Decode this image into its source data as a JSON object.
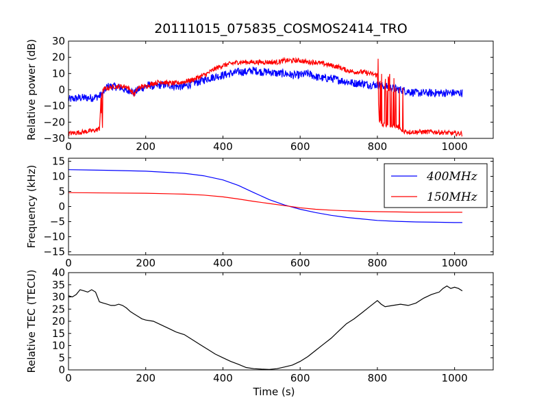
{
  "figure": {
    "title": "20111015_075835_COSMOS2414_TRO"
  },
  "chart_data": [
    {
      "type": "line",
      "ylabel": "Relative power (dB)",
      "xlim": [
        0,
        1100
      ],
      "ylim": [
        -30,
        30
      ],
      "xticks": [
        0,
        200,
        400,
        600,
        800,
        1000
      ],
      "yticks": [
        -30,
        -20,
        -10,
        0,
        10,
        20,
        30
      ],
      "grid": false,
      "series": [
        {
          "color": "#0000ff",
          "noise": 2.5,
          "x": [
            0,
            30,
            60,
            80,
            90,
            100,
            120,
            140,
            150,
            160,
            170,
            180,
            200,
            210,
            220,
            240,
            260,
            280,
            300,
            320,
            340,
            360,
            380,
            400,
            420,
            440,
            460,
            480,
            500,
            520,
            540,
            560,
            580,
            600,
            620,
            640,
            660,
            680,
            700,
            720,
            740,
            760,
            780,
            800,
            820,
            840,
            860,
            880,
            900,
            950,
            1000,
            1020
          ],
          "values": [
            -6,
            -5,
            -5,
            -4,
            -2,
            2,
            2,
            1,
            -1,
            0,
            -2,
            0,
            2,
            3,
            2,
            3,
            3,
            2,
            2,
            4,
            5,
            7,
            8,
            9,
            10,
            11,
            11,
            12,
            11,
            11,
            10,
            10,
            9,
            9,
            10,
            8,
            7,
            7,
            6,
            5,
            4,
            4,
            3,
            3,
            2,
            1,
            0,
            -1,
            -2,
            -2,
            -2,
            -2
          ]
        },
        {
          "color": "#ff0000",
          "noise": 1.5,
          "x": [
            0,
            40,
            70,
            80,
            85,
            90,
            100,
            120,
            140,
            150,
            160,
            170,
            180,
            190,
            200,
            210,
            220,
            240,
            260,
            280,
            300,
            320,
            340,
            360,
            380,
            400,
            420,
            440,
            460,
            480,
            500,
            520,
            540,
            560,
            580,
            600,
            620,
            640,
            660,
            680,
            700,
            720,
            740,
            760,
            780,
            800,
            805,
            820,
            840,
            850,
            860,
            880,
            900,
            950,
            1000,
            1020
          ],
          "values": [
            -27,
            -26,
            -25,
            -24,
            -2,
            0,
            1,
            2,
            2,
            2,
            0,
            -3,
            1,
            2,
            2,
            3,
            4,
            5,
            4,
            4,
            5,
            6,
            8,
            10,
            13,
            15,
            16,
            17,
            17,
            17,
            17,
            17,
            17,
            18,
            18,
            18,
            17,
            17,
            16,
            15,
            14,
            12,
            11,
            11,
            10,
            9,
            -20,
            -22,
            -22,
            -22,
            -25,
            -26,
            -26,
            -26,
            -27,
            -27
          ]
        }
      ]
    },
    {
      "type": "line",
      "ylabel": "Frequency (kHz)",
      "xlim": [
        0,
        1100
      ],
      "ylim": [
        -16,
        16
      ],
      "xticks": [
        0,
        200,
        400,
        600,
        800,
        1000
      ],
      "yticks": [
        -15,
        -10,
        -5,
        0,
        5,
        10,
        15
      ],
      "grid": false,
      "legend": "top-right",
      "series": [
        {
          "name": "400MHz",
          "color": "#0000ff",
          "x": [
            0,
            100,
            200,
            300,
            350,
            400,
            440,
            480,
            520,
            560,
            600,
            640,
            680,
            720,
            760,
            800,
            850,
            900,
            950,
            1000,
            1020
          ],
          "values": [
            12.2,
            12,
            11.7,
            11,
            10.2,
            8.8,
            7,
            4.6,
            2.3,
            0.5,
            -0.9,
            -2,
            -2.9,
            -3.6,
            -4.1,
            -4.6,
            -4.9,
            -5.1,
            -5.2,
            -5.3,
            -5.3
          ]
        },
        {
          "name": "150MHz",
          "color": "#ff0000",
          "x": [
            0,
            100,
            200,
            300,
            350,
            400,
            440,
            480,
            520,
            560,
            600,
            640,
            680,
            720,
            760,
            800,
            850,
            900,
            950,
            1000,
            1020
          ],
          "values": [
            4.6,
            4.5,
            4.4,
            4.1,
            3.8,
            3.2,
            2.5,
            1.7,
            1,
            0.3,
            -0.4,
            -0.9,
            -1.2,
            -1.4,
            -1.6,
            -1.7,
            -1.8,
            -1.9,
            -1.9,
            -1.9,
            -1.9
          ]
        }
      ]
    },
    {
      "type": "line",
      "ylabel": "Relative TEC (TECU)",
      "xlabel": "Time (s)",
      "xlim": [
        0,
        1100
      ],
      "ylim": [
        0,
        40
      ],
      "xticks": [
        0,
        200,
        400,
        600,
        800,
        1000
      ],
      "yticks": [
        0,
        5,
        10,
        15,
        20,
        25,
        30,
        35,
        40
      ],
      "grid": false,
      "series": [
        {
          "color": "#000000",
          "x": [
            0,
            10,
            20,
            30,
            40,
            50,
            60,
            70,
            80,
            90,
            100,
            110,
            120,
            130,
            140,
            150,
            160,
            170,
            180,
            190,
            200,
            220,
            240,
            260,
            280,
            300,
            320,
            340,
            360,
            380,
            400,
            420,
            440,
            460,
            480,
            500,
            520,
            540,
            560,
            580,
            600,
            620,
            640,
            660,
            680,
            700,
            720,
            740,
            760,
            780,
            800,
            810,
            820,
            840,
            860,
            880,
            900,
            920,
            940,
            960,
            970,
            980,
            990,
            1000,
            1010,
            1020
          ],
          "values": [
            30.5,
            30,
            31,
            33,
            32.5,
            32,
            33,
            32,
            28,
            27.5,
            27,
            26.5,
            26.5,
            27,
            26.5,
            25.5,
            24,
            23,
            22,
            21,
            20.5,
            20,
            18.5,
            17,
            15.5,
            14.5,
            12.5,
            10.5,
            8.5,
            6.5,
            5,
            3.5,
            2.3,
            1,
            0.5,
            0.3,
            0.2,
            0.5,
            1.2,
            2,
            3.5,
            5.5,
            8,
            10.5,
            13,
            16,
            19,
            21,
            23.5,
            26,
            28.5,
            27,
            26,
            26.5,
            27,
            26.5,
            27.5,
            29.5,
            31,
            32,
            33.5,
            34.5,
            33.5,
            34,
            33.5,
            32.5
          ]
        }
      ]
    }
  ]
}
